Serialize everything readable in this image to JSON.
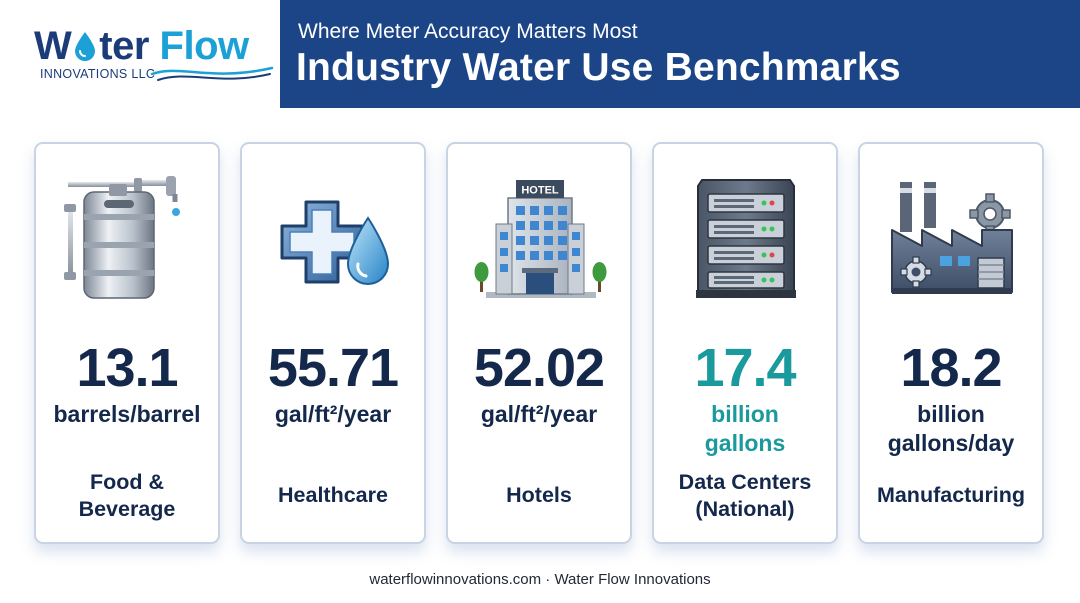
{
  "logo": {
    "name_part1": "W",
    "name_part2": "ter",
    "name_part3": "Flow",
    "subtitle": "INNOVATIONS LLC"
  },
  "header": {
    "subtitle": "Where Meter Accuracy Matters Most",
    "title": "Industry Water Use Benchmarks"
  },
  "cards": [
    {
      "icon": "keg-with-taps-icon",
      "value": "13.1",
      "unit_lines": [
        "barrels/barrel"
      ],
      "label_lines": [
        "Food &",
        "Beverage"
      ],
      "accent": false
    },
    {
      "icon": "medical-cross-water-drop-icon",
      "value": "55.71",
      "unit_lines": [
        "gal/ft²/year"
      ],
      "label_lines": [
        "Healthcare"
      ],
      "accent": false
    },
    {
      "icon": "hotel-building-icon",
      "value": "52.02",
      "unit_lines": [
        "gal/ft²/year"
      ],
      "label_lines": [
        "Hotels"
      ],
      "accent": false,
      "hotel_sign": "HOTEL"
    },
    {
      "icon": "server-rack-icon",
      "value": "17.4",
      "unit_lines": [
        "billion",
        "gallons"
      ],
      "label_lines": [
        "Data Centers",
        "(National)"
      ],
      "accent": true
    },
    {
      "icon": "factory-gear-icon",
      "value": "18.2",
      "unit_lines": [
        "billion",
        "gallons/day"
      ],
      "label_lines": [
        "Manufacturing"
      ],
      "accent": false
    }
  ],
  "colors": {
    "navy": "#14284b",
    "banner_blue": "#1c4587",
    "teal_accent": "#1a9a9c",
    "logo_light_blue": "#1ba1d6"
  },
  "footer": {
    "text": "waterflowinnovations.com · Water Flow Innovations"
  }
}
